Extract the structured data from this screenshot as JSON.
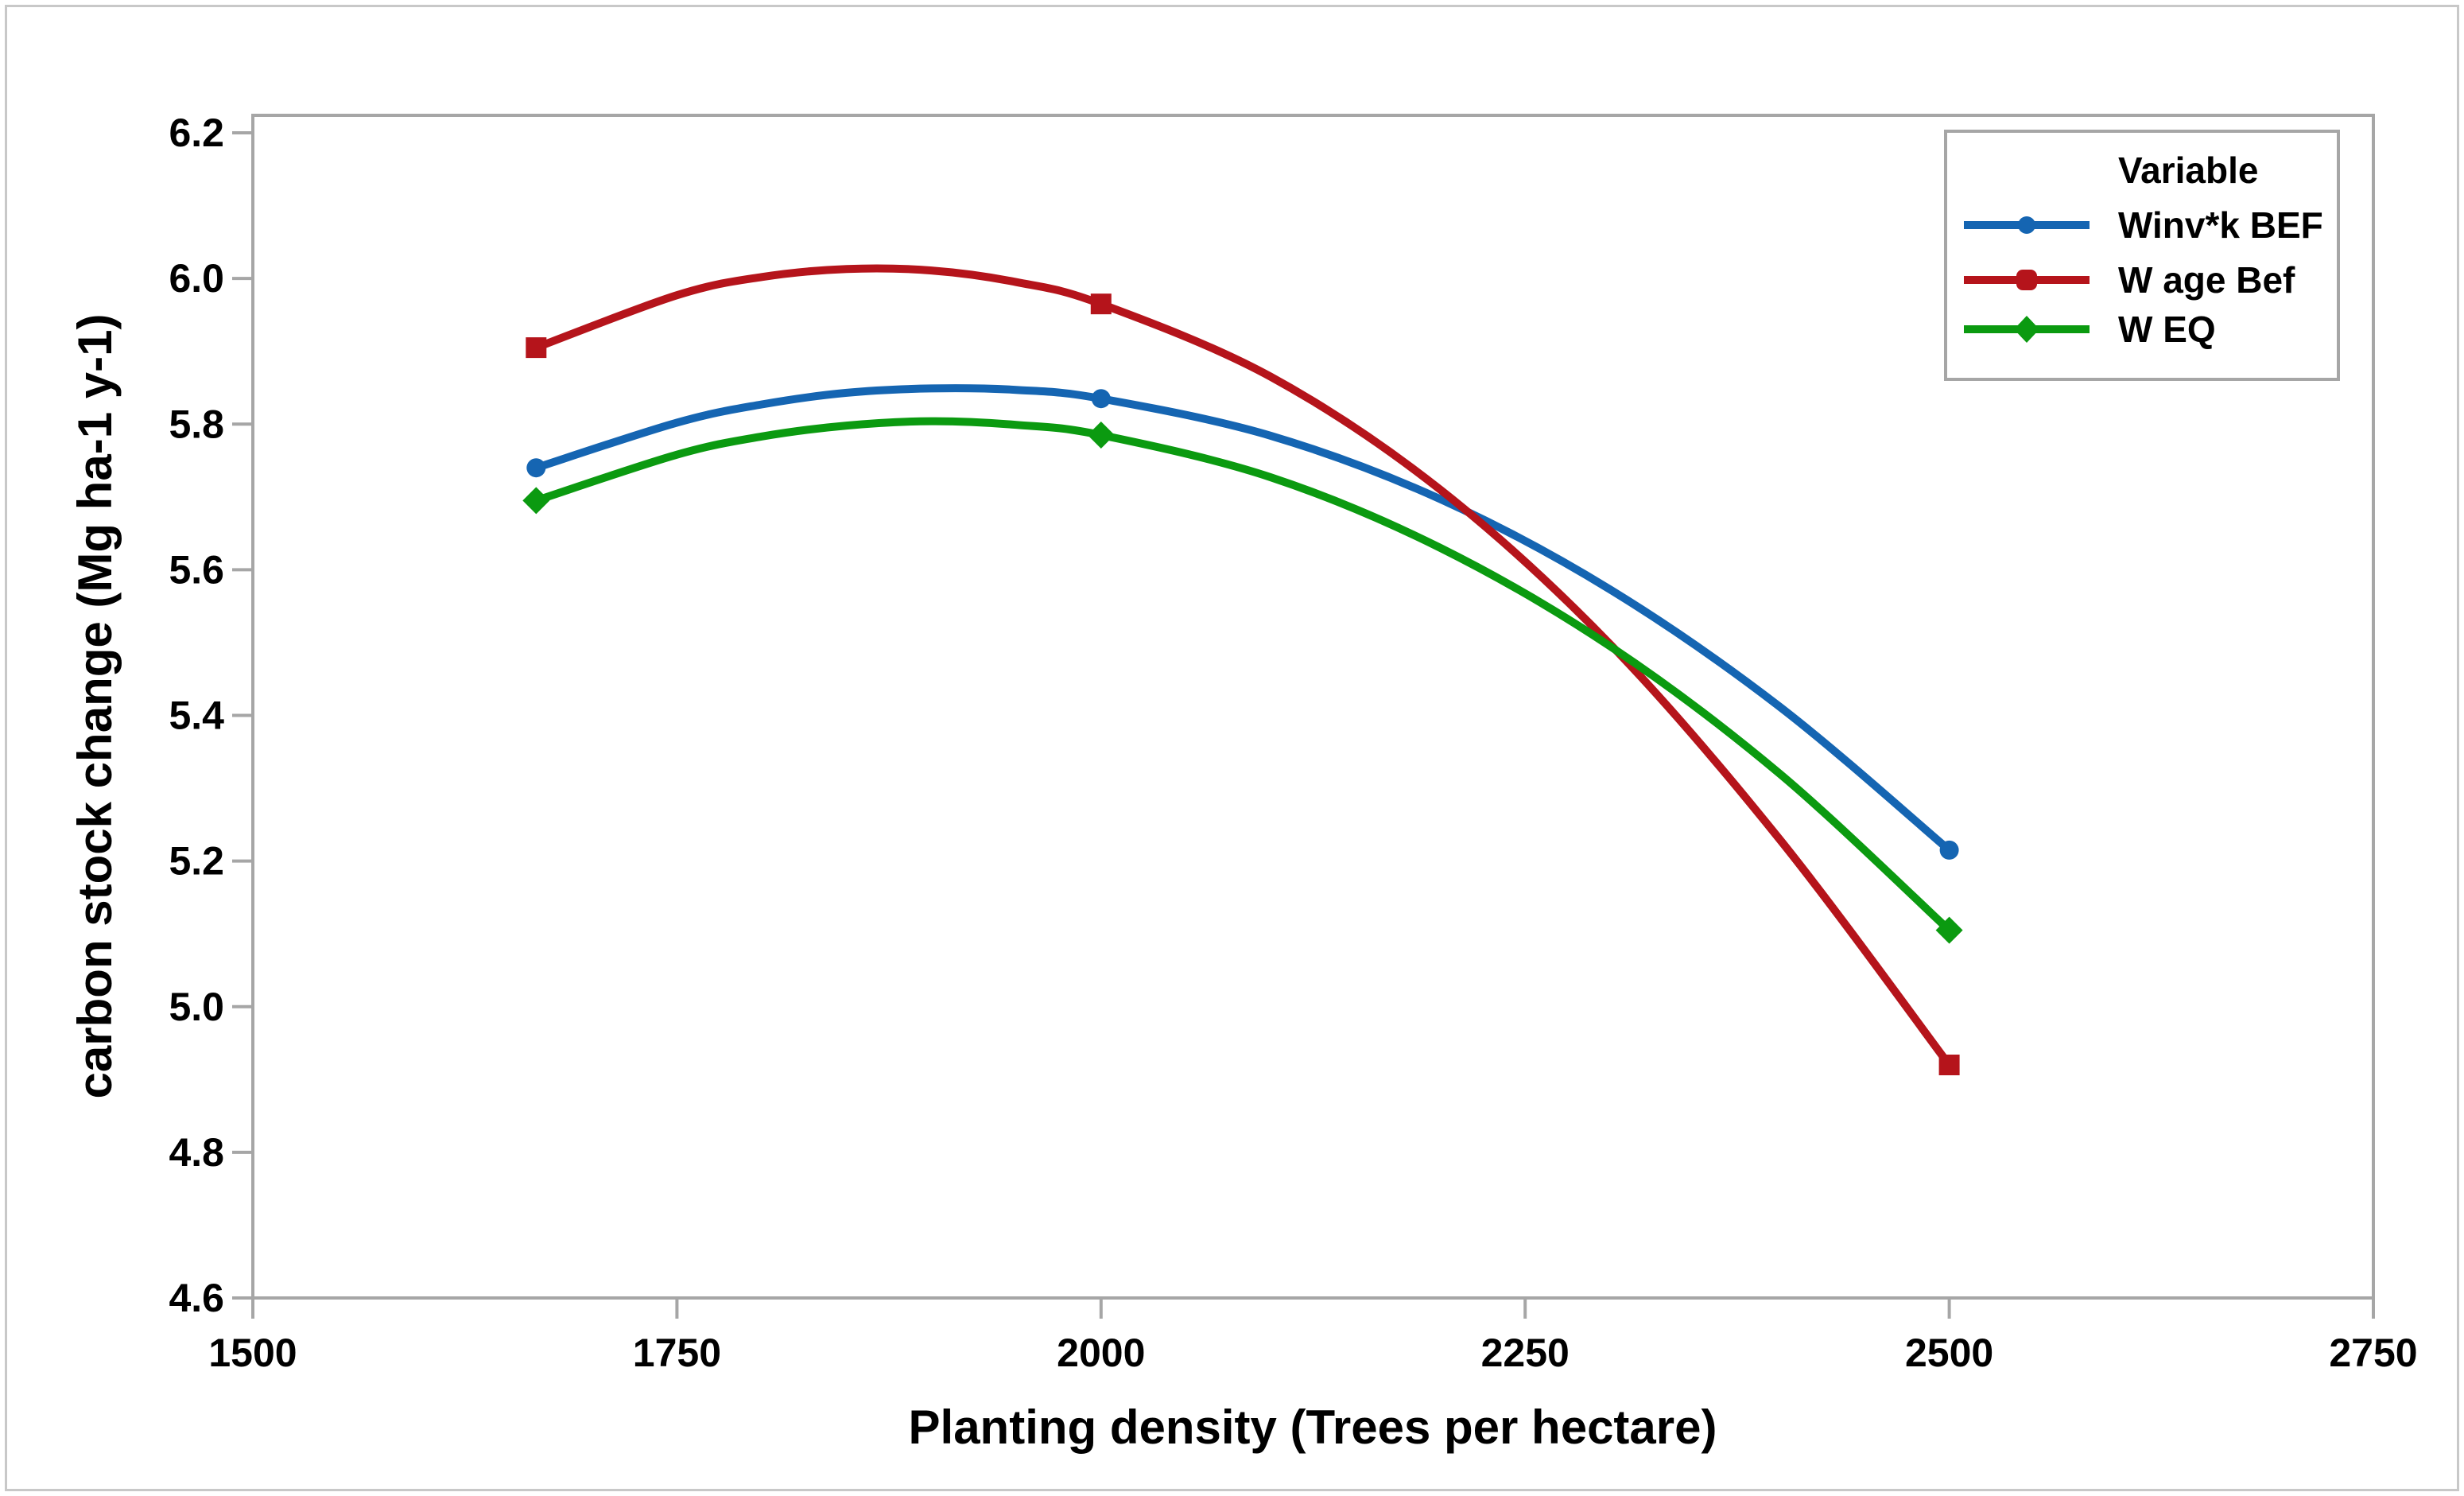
{
  "figure": {
    "background": "#ffffff",
    "outer_border_color": "#c8c8c8"
  },
  "chart_data": {
    "type": "line",
    "title": "",
    "xlabel": "Planting density (Trees per hectare)",
    "ylabel": "carbon stock change (Mg ha-1 y-1)",
    "xlim": [
      1500,
      2750
    ],
    "ylim": [
      4.6,
      6.2
    ],
    "x_ticks": [
      1500,
      1750,
      2000,
      2250,
      2500,
      2750
    ],
    "y_ticks": [
      4.6,
      4.8,
      5.0,
      5.2,
      5.4,
      5.6,
      5.8,
      6.0,
      6.2
    ],
    "grid": false,
    "frame_color": "#a6a6a6",
    "legend_title": "Variable",
    "legend_position": "top-right",
    "series": [
      {
        "name": "Winv*k BEF",
        "color": "#1565b2",
        "marker": "circle",
        "marker_x": [
          1667,
          2000,
          2500
        ],
        "x": [
          1667,
          1750,
          1800,
          1850,
          1900,
          1950,
          2000,
          2100,
          2200,
          2300,
          2400,
          2500
        ],
        "y": [
          5.74,
          5.802,
          5.827,
          5.843,
          5.849,
          5.847,
          5.835,
          5.784,
          5.697,
          5.573,
          5.412,
          5.215
        ]
      },
      {
        "name": "W age Bef",
        "color": "#b5141b",
        "marker": "square",
        "marker_x": [
          1667,
          2000,
          2500
        ],
        "x": [
          1667,
          1750,
          1800,
          1850,
          1900,
          1950,
          2000,
          2100,
          2200,
          2300,
          2400,
          2500
        ],
        "y": [
          5.905,
          5.977,
          6.002,
          6.013,
          6.011,
          5.995,
          5.965,
          5.865,
          5.71,
          5.498,
          5.23,
          4.92
        ]
      },
      {
        "name": "W EQ",
        "color": "#0b9a10",
        "marker": "diamond",
        "marker_x": [
          1667,
          2000,
          2500
        ],
        "x": [
          1667,
          1750,
          1800,
          1850,
          1900,
          1950,
          2000,
          2100,
          2200,
          2300,
          2400,
          2500
        ],
        "y": [
          5.695,
          5.758,
          5.783,
          5.798,
          5.804,
          5.799,
          5.785,
          5.727,
          5.63,
          5.495,
          5.32,
          5.105
        ]
      }
    ]
  }
}
